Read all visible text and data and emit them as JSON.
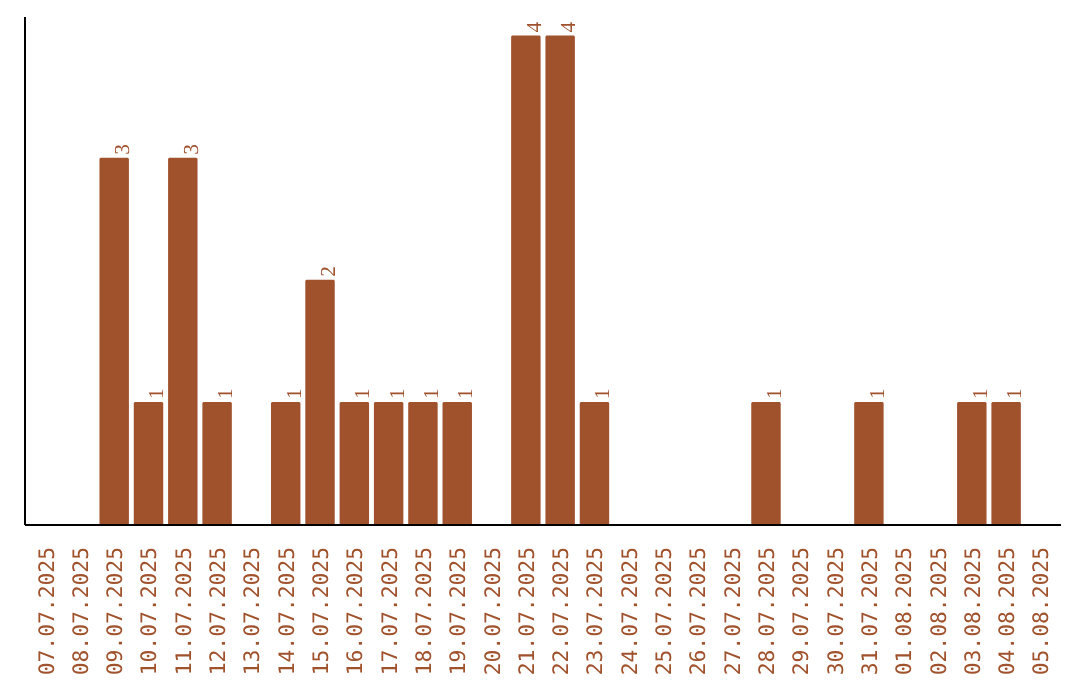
{
  "chart_data": {
    "type": "bar",
    "categories": [
      "07.07.2025",
      "08.07.2025",
      "09.07.2025",
      "10.07.2025",
      "11.07.2025",
      "12.07.2025",
      "13.07.2025",
      "14.07.2025",
      "15.07.2025",
      "16.07.2025",
      "17.07.2025",
      "18.07.2025",
      "19.07.2025",
      "20.07.2025",
      "21.07.2025",
      "22.07.2025",
      "23.07.2025",
      "24.07.2025",
      "25.07.2025",
      "26.07.2025",
      "27.07.2025",
      "28.07.2025",
      "29.07.2025",
      "30.07.2025",
      "31.07.2025",
      "01.08.2025",
      "02.08.2025",
      "03.08.2025",
      "04.08.2025",
      "05.08.2025"
    ],
    "values": [
      0,
      0,
      3,
      1,
      3,
      1,
      0,
      1,
      2,
      1,
      1,
      1,
      1,
      0,
      4,
      4,
      1,
      0,
      0,
      0,
      0,
      1,
      0,
      0,
      1,
      0,
      0,
      1,
      1,
      0
    ],
    "value_labels": [
      null,
      null,
      "3",
      "1",
      "3",
      "1",
      null,
      "1",
      "2",
      "1",
      "1",
      "1",
      "1",
      null,
      "4",
      "4",
      "1",
      null,
      null,
      null,
      null,
      "1",
      null,
      null,
      "1",
      null,
      null,
      "1",
      "1",
      null
    ],
    "color": "#a0522d"
  }
}
